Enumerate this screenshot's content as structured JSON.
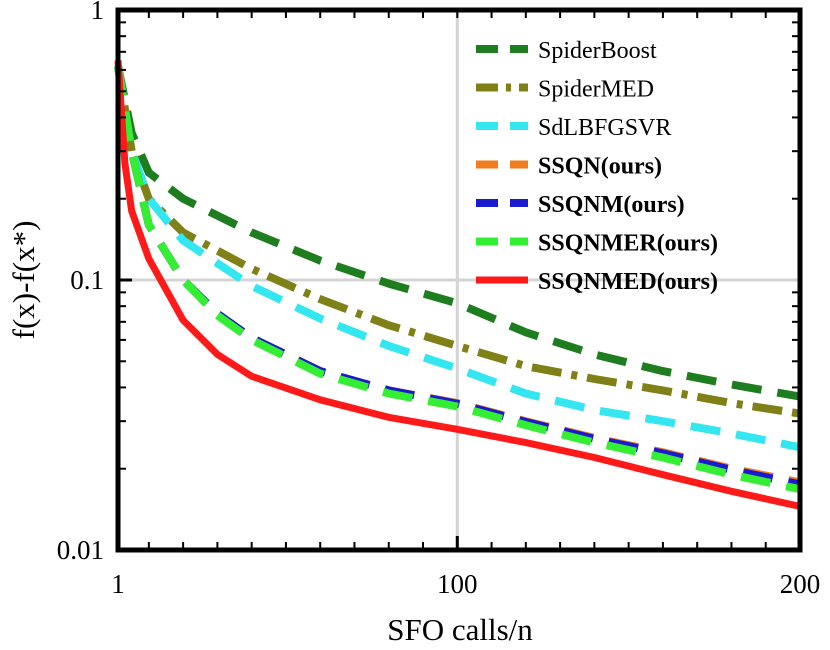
{
  "chart_data": {
    "type": "line",
    "title": "",
    "xlabel": "SFO calls/n",
    "ylabel": "f(x)-f(x*)",
    "xlim": [
      1,
      200
    ],
    "ylim": [
      0.01,
      1
    ],
    "yscale": "log",
    "grid": true,
    "legend_position": "top-right",
    "xticks": [
      {
        "value": 1,
        "label": "1"
      },
      {
        "value": 100,
        "label": "100"
      },
      {
        "value": 200,
        "label": "200"
      }
    ],
    "yticks": [
      {
        "value": 1,
        "label": "1"
      },
      {
        "value": 0.1,
        "label": "0.1"
      },
      {
        "value": 0.01,
        "label": "0.01"
      }
    ],
    "series": [
      {
        "name": "SpiderBoost",
        "bold": false,
        "color": "#1e7d1e",
        "dash": "dashed",
        "x": [
          1,
          5,
          10,
          20,
          40,
          60,
          80,
          100,
          120,
          140,
          160,
          180,
          200
        ],
        "y": [
          0.62,
          0.35,
          0.25,
          0.2,
          0.15,
          0.118,
          0.097,
          0.082,
          0.064,
          0.053,
          0.046,
          0.041,
          0.037
        ]
      },
      {
        "name": "SpiderMED",
        "bold": false,
        "color": "#808018",
        "dash": "dashdot",
        "x": [
          1,
          5,
          10,
          20,
          40,
          60,
          80,
          100,
          120,
          140,
          160,
          180,
          200
        ],
        "y": [
          0.62,
          0.3,
          0.2,
          0.15,
          0.11,
          0.085,
          0.068,
          0.057,
          0.048,
          0.043,
          0.039,
          0.035,
          0.032
        ]
      },
      {
        "name": "SdLBFGSVR",
        "bold": false,
        "color": "#33e6f0",
        "dash": "dashed",
        "x": [
          1,
          5,
          10,
          20,
          40,
          60,
          80,
          100,
          120,
          140,
          160,
          180,
          200
        ],
        "y": [
          0.62,
          0.3,
          0.2,
          0.14,
          0.095,
          0.072,
          0.057,
          0.047,
          0.038,
          0.033,
          0.03,
          0.027,
          0.024
        ]
      },
      {
        "name": "SSQN(ours)",
        "bold": true,
        "color": "#f07d1e",
        "dash": "dashed",
        "x": [
          1,
          5,
          10,
          20,
          30,
          40,
          60,
          80,
          100,
          120,
          140,
          160,
          180,
          200
        ],
        "y": [
          0.62,
          0.3,
          0.16,
          0.1,
          0.075,
          0.061,
          0.046,
          0.039,
          0.035,
          0.03,
          0.026,
          0.023,
          0.02,
          0.0178
        ]
      },
      {
        "name": "SSQNM(ours)",
        "bold": true,
        "color": "#1a1ad0",
        "dash": "dashed",
        "x": [
          1,
          5,
          10,
          20,
          30,
          40,
          60,
          80,
          100,
          120,
          140,
          160,
          180,
          200
        ],
        "y": [
          0.62,
          0.3,
          0.16,
          0.1,
          0.075,
          0.061,
          0.046,
          0.039,
          0.0348,
          0.0298,
          0.0258,
          0.0228,
          0.0198,
          0.0175
        ]
      },
      {
        "name": "SSQNMER(ours)",
        "bold": true,
        "color": "#33ee33",
        "dash": "dashed",
        "x": [
          1,
          5,
          10,
          20,
          30,
          40,
          60,
          80,
          100,
          120,
          140,
          160,
          180,
          200
        ],
        "y": [
          0.62,
          0.3,
          0.16,
          0.1,
          0.074,
          0.06,
          0.045,
          0.038,
          0.034,
          0.029,
          0.025,
          0.022,
          0.019,
          0.0168
        ]
      },
      {
        "name": "SSQNMED(ours)",
        "bold": true,
        "color": "#ff1a1a",
        "dash": "solid",
        "x": [
          1,
          3,
          5,
          10,
          20,
          30,
          40,
          60,
          80,
          100,
          120,
          140,
          160,
          180,
          200
        ],
        "y": [
          0.65,
          0.27,
          0.18,
          0.12,
          0.071,
          0.053,
          0.044,
          0.036,
          0.031,
          0.028,
          0.025,
          0.022,
          0.019,
          0.0165,
          0.0145
        ]
      }
    ]
  }
}
